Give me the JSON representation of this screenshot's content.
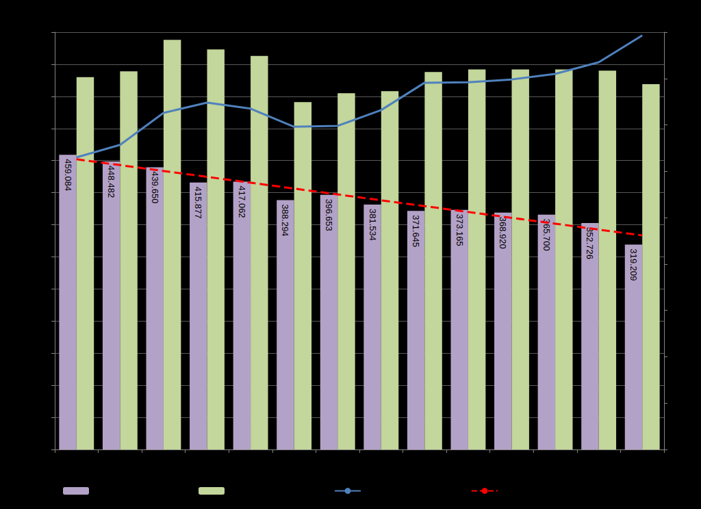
{
  "chart_data": {
    "type": "bar",
    "categories": [
      null,
      null,
      null,
      null,
      null,
      null,
      null,
      null,
      null,
      null,
      null,
      null,
      null,
      null
    ],
    "series": [
      {
        "type": "bar",
        "color": "#B3A2C7",
        "values": [
          459.084,
          448.482,
          439.65,
          415.877,
          417.062,
          388.294,
          396.653,
          381.534,
          371.645,
          373.165,
          368.92,
          365.7,
          352.726,
          319.209
        ],
        "value_labels": [
          "459.084",
          "448.482",
          "439.650",
          "415.877",
          "417.062",
          "388.294",
          "396.653",
          "381.534",
          "371.645",
          "373.165",
          "368.920",
          "365.700",
          "352.726",
          "319.209"
        ]
      },
      {
        "type": "bar",
        "color": "#C3D69B",
        "values": [
          580,
          589,
          638,
          623,
          613,
          541,
          555,
          558,
          588,
          592,
          592,
          592,
          590,
          569
        ]
      },
      {
        "type": "line",
        "color": "#4F81BD",
        "axis": "y2",
        "line_style": "solid",
        "values": [
          63.0,
          65.7,
          72.6,
          74.8,
          73.5,
          69.6,
          69.8,
          73.2,
          79.1,
          79.2,
          79.8,
          81.0,
          83.5,
          89.3
        ]
      },
      {
        "type": "line",
        "color": "#FF0000",
        "line_style": "dashed",
        "values": [
          452.0,
          442.9,
          433.8,
          424.6,
          415.5,
          406.4,
          397.3,
          388.1,
          379.0,
          369.9,
          360.8,
          351.7,
          342.5,
          333.4
        ]
      }
    ],
    "ylim": [
      0,
      650
    ],
    "yticks": [
      0,
      50,
      100,
      150,
      200,
      250,
      300,
      350,
      400,
      450,
      500,
      550,
      600,
      650
    ],
    "y2lim": [
      0,
      90
    ],
    "y2ticks": [
      0,
      10,
      20,
      30,
      40,
      50,
      60,
      70,
      80,
      90
    ],
    "grid": true,
    "legend": "bottom",
    "data_labels": true,
    "tick_labels": false
  }
}
